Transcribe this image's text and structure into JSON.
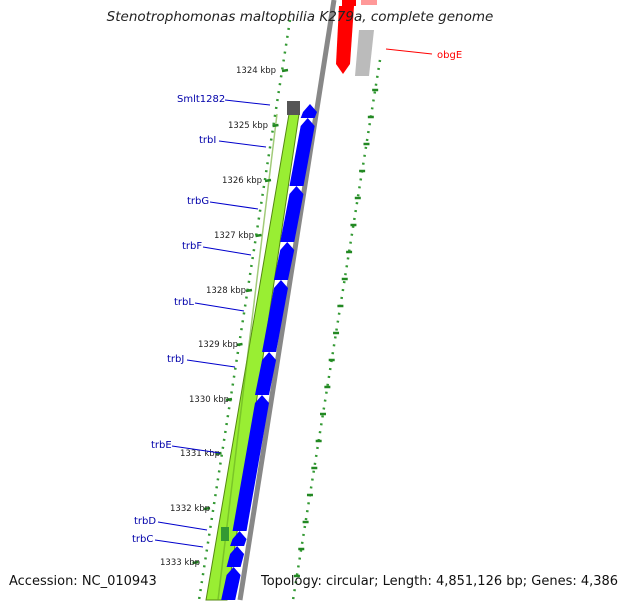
{
  "title": "Stenotrophomonas maltophilia K279a, complete genome",
  "footer": {
    "accession": "Accession: NC_010943",
    "summary": "Topology: circular; Length: 4,851,126 bp; Genes: 4,386"
  },
  "ticks": [
    "1324 kbp",
    "1325 kbp",
    "1326 kbp",
    "1327 kbp",
    "1328 kbp",
    "1329 kbp",
    "1330 kbp",
    "1331 kbp",
    "1332 kbp",
    "1333 kbp"
  ],
  "gene_labels": [
    "Smlt1282",
    "trbI",
    "trbG",
    "trbF",
    "trbL",
    "trbJ",
    "trbE",
    "trbD",
    "trbC"
  ],
  "reverse_gene_labels": [
    "obgE"
  ],
  "colors": {
    "forward_genes": "#0000ff",
    "reverse_genes": "#ff0000",
    "gc_content": "#99ee33",
    "backbone": "#888888",
    "tick_marks": "#228822",
    "labels": "#0000aa"
  }
}
